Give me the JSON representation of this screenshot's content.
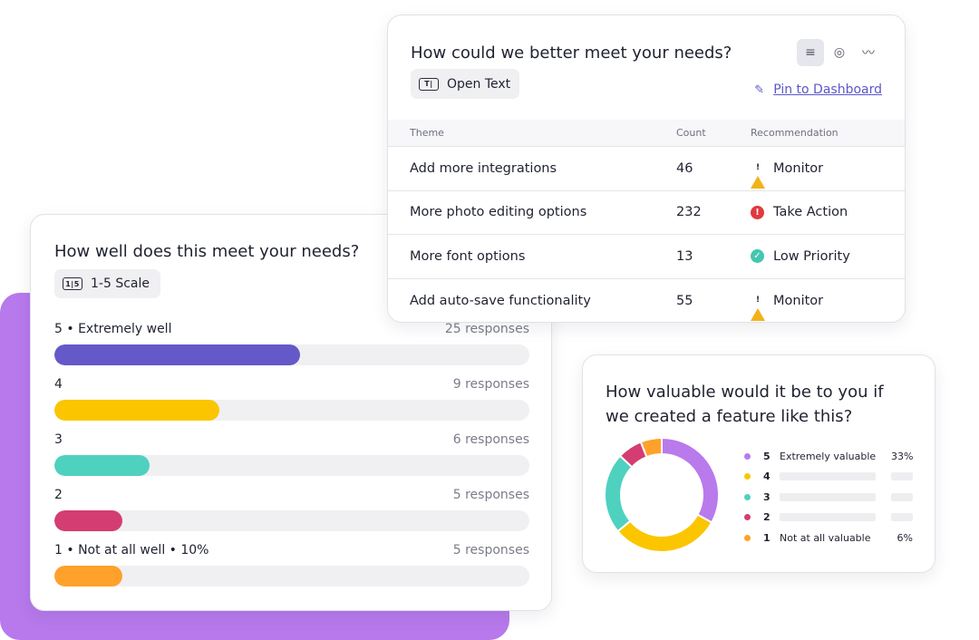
{
  "scale_card": {
    "question": "How well does this meet your needs?",
    "type_label": "1-5 Scale",
    "type_icon": "scale-icon",
    "rows": [
      {
        "label": "5 • Extremely well",
        "responses": "25 responses",
        "fill_fraction": 0.517,
        "color": "#6558c8"
      },
      {
        "label": "4",
        "responses": "9 responses",
        "fill_fraction": 0.347,
        "color": "#fbc500"
      },
      {
        "label": "3",
        "responses": "6 responses",
        "fill_fraction": 0.2,
        "color": "#4fd1c0"
      },
      {
        "label": "2",
        "responses": "5 responses",
        "fill_fraction": 0.143,
        "color": "#d43d72"
      },
      {
        "label": "1 • Not at all well • 10%",
        "responses": "5 responses",
        "fill_fraction": 0.143,
        "color": "#ffa12b"
      }
    ]
  },
  "text_card": {
    "question": "How could we better meet your needs?",
    "type_label": "Open Text",
    "type_icon": "text-field-icon",
    "views": [
      {
        "icon": "list-view-icon",
        "glyph": "≡",
        "active": true
      },
      {
        "icon": "comment-view-icon",
        "glyph": "◎",
        "active": false
      },
      {
        "icon": "trend-view-icon",
        "glyph": "〰",
        "active": false
      }
    ],
    "pin_label": "Pin to Dashboard",
    "pin_icon": "pin-icon",
    "table": {
      "headers": {
        "theme": "Theme",
        "count": "Count",
        "recommendation": "Recommendation"
      },
      "rows": [
        {
          "theme": "Add more integrations",
          "count": "46",
          "recommendation": "Monitor",
          "status": "warning",
          "color": "#f1b21a"
        },
        {
          "theme": "More photo editing options",
          "count": "232",
          "recommendation": "Take Action",
          "status": "alert",
          "color": "#e0393e"
        },
        {
          "theme": "More font options",
          "count": "13",
          "recommendation": "Low Priority",
          "status": "check",
          "color": "#43c7b0"
        },
        {
          "theme": "Add auto-save functionality",
          "count": "55",
          "recommendation": "Monitor",
          "status": "warning",
          "color": "#f1b21a"
        }
      ]
    }
  },
  "donut_card": {
    "question": "How valuable would it be to you if we created a feature like this?",
    "legend": [
      {
        "num": "5",
        "label": "Extremely valuable",
        "pct": "33%",
        "color": "#b97aec"
      },
      {
        "num": "4",
        "label": "",
        "pct": "",
        "color": "#fbc500"
      },
      {
        "num": "3",
        "label": "",
        "pct": "",
        "color": "#4fd1c0"
      },
      {
        "num": "2",
        "label": "",
        "pct": "",
        "color": "#d43d72"
      },
      {
        "num": "1",
        "label": "Not at all valuable",
        "pct": "6%",
        "color": "#ffa12b"
      }
    ],
    "segments": [
      {
        "name": "5",
        "value": 33,
        "color": "#b97aec"
      },
      {
        "name": "4",
        "value": 31,
        "color": "#fbc500"
      },
      {
        "name": "3",
        "value": 23,
        "color": "#4fd1c0"
      },
      {
        "name": "2",
        "value": 7,
        "color": "#d43d72"
      },
      {
        "name": "1",
        "value": 6,
        "color": "#ffa12b"
      }
    ]
  }
}
